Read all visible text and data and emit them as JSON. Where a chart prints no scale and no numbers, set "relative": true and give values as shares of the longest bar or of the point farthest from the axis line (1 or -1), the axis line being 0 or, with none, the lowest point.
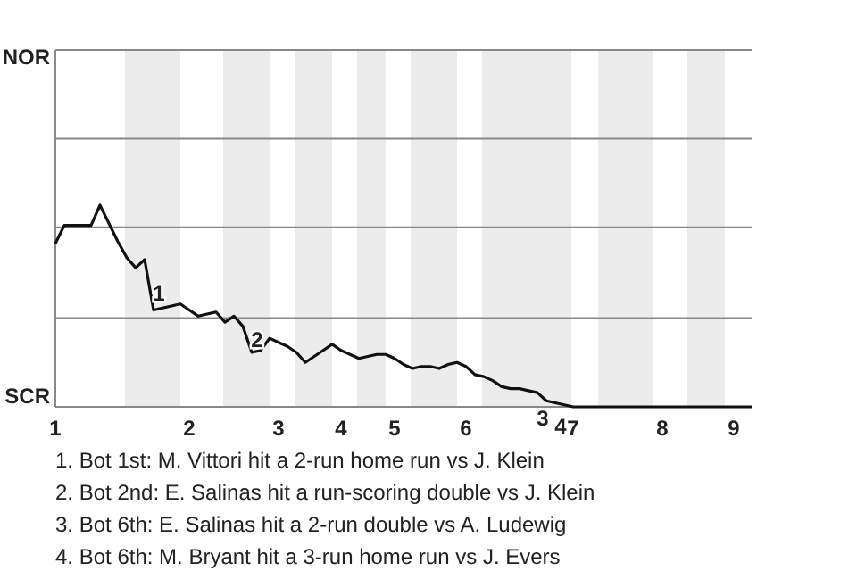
{
  "chart_data": {
    "type": "line",
    "relative": true,
    "categories": [
      "1",
      null,
      null,
      null,
      null,
      null,
      null,
      null,
      null,
      null,
      null,
      null,
      null,
      null,
      null,
      "2",
      null,
      null,
      null,
      null,
      null,
      null,
      null,
      null,
      null,
      "3",
      null,
      null,
      null,
      null,
      null,
      null,
      "4",
      null,
      null,
      null,
      null,
      null,
      "5",
      null,
      null,
      null,
      null,
      null,
      null,
      null,
      "6",
      null,
      null,
      null,
      null,
      null,
      null,
      null,
      null,
      null,
      null,
      null,
      "7",
      null,
      null,
      null,
      null,
      null,
      null,
      null,
      null,
      null,
      "8",
      null,
      null,
      null,
      null,
      null,
      null,
      null,
      "9",
      null,
      null
    ],
    "series": [
      {
        "color": "#111111",
        "values": [
          0.81,
          0.9,
          0.9,
          0.9,
          0.9,
          1,
          0.91,
          0.82,
          0.74,
          0.69,
          0.73,
          0.48,
          0.49,
          0.5,
          0.51,
          0.48,
          0.45,
          0.46,
          0.47,
          0.42,
          0.45,
          0.4,
          0.27,
          0.28,
          0.34,
          0.32,
          0.3,
          0.27,
          0.22,
          0.25,
          0.28,
          0.31,
          0.28,
          0.26,
          0.24,
          0.25,
          0.26,
          0.26,
          0.24,
          0.21,
          0.19,
          0.2,
          0.2,
          0.19,
          0.21,
          0.22,
          0.2,
          0.16,
          0.15,
          0.13,
          0.1,
          0.09,
          0.09,
          0.08,
          0.07,
          0.03,
          0.02,
          0.01,
          0,
          0,
          0,
          0,
          0,
          0,
          0,
          0,
          0,
          0,
          0,
          0,
          0,
          0,
          0,
          0,
          0,
          0,
          0,
          0,
          0
        ]
      }
    ],
    "marker": "none",
    "line_style": "solid",
    "ref_lines": [
      {
        "axis": "y",
        "value": 0.44,
        "color": "#888888"
      },
      {
        "axis": "y",
        "value": 0.89,
        "color": "#888888"
      },
      {
        "axis": "y",
        "value": 1.33,
        "color": "#888888"
      },
      {
        "axis": "y",
        "value": 1.77,
        "color": "#888888"
      }
    ],
    "annotations": [
      "NOR",
      "SCR",
      "1",
      "2",
      "3",
      "4",
      "1. Bot 1st: M. Vittori hit a 2-run home run vs J. Klein",
      "2. Bot 2nd: E. Salinas hit a run-scoring double vs J. Klein",
      "3. Bot 6th: E. Salinas hit a 2-run double vs A. Ludewig",
      "4. Bot 6th: M. Bryant hit a 3-run home run vs J. Evers"
    ]
  }
}
